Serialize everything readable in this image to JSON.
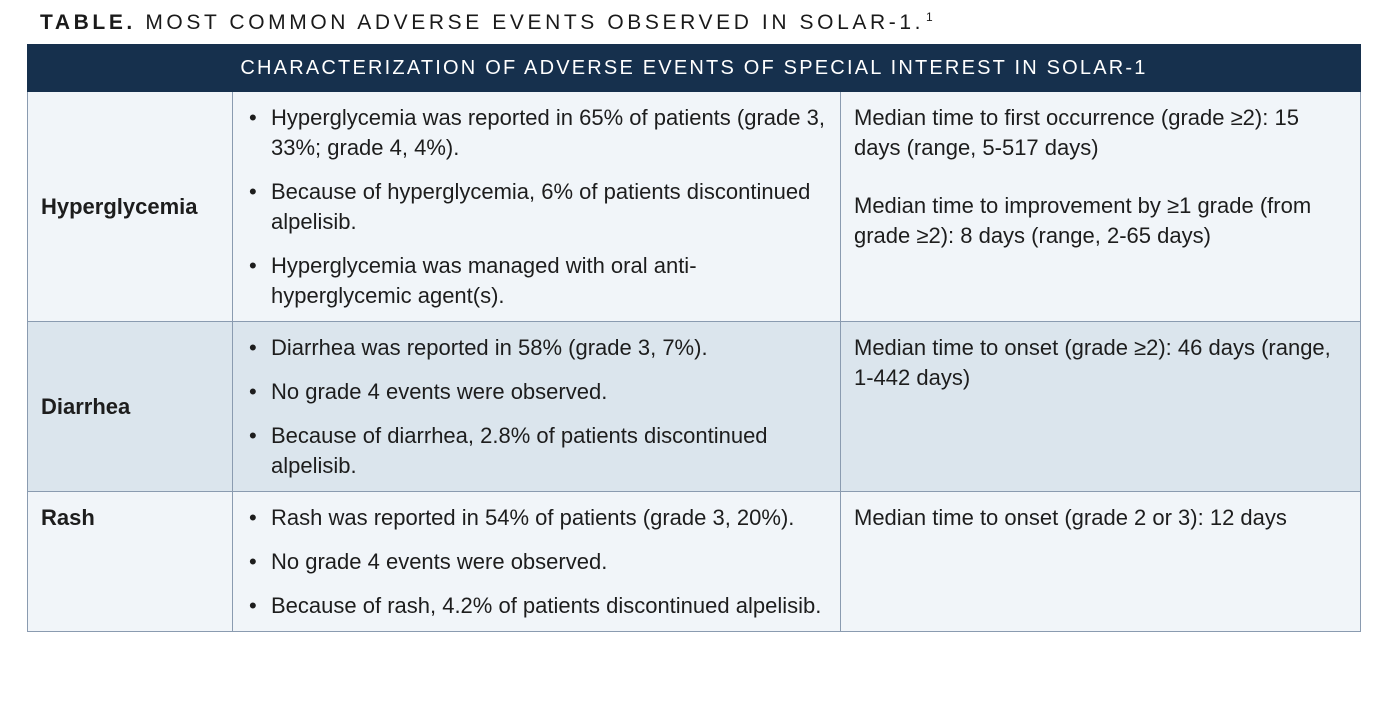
{
  "caption": {
    "label": "TABLE.",
    "title": "MOST COMMON ADVERSE EVENTS OBSERVED IN SOLAR-1.",
    "ref": "1"
  },
  "table": {
    "header": "CHARACTERIZATION OF ADVERSE EVENTS OF SPECIAL INTEREST IN SOLAR-1",
    "rows": [
      {
        "term": "Hyperglycemia",
        "bullets": [
          "Hyperglycemia was reported in 65% of patients (grade 3, 33%; grade 4, 4%).",
          "Because of hyperglycemia, 6% of patients discontinued alpelisib.",
          "Hyperglycemia was managed with oral anti-hyperglycemic agent(s)."
        ],
        "notes": [
          "Median time to first occurrence (grade ≥2): 15 days (range, 5-517 days)",
          "Median time to improvement by ≥1 grade (from grade ≥2): 8 days (range, 2-65 days)"
        ]
      },
      {
        "term": "Diarrhea",
        "bullets": [
          "Diarrhea was reported in 58% (grade 3, 7%).",
          "No grade 4 events were observed.",
          "Because of diarrhea, 2.8% of patients discontinued alpelisib."
        ],
        "notes": [
          "Median time to onset (grade ≥2): 46 days (range, 1-442 days)"
        ]
      },
      {
        "term": "Rash",
        "bullets": [
          "Rash was reported in 54% of patients (grade 3, 20%).",
          "No grade 4 events were observed.",
          "Because of rash, 4.2% of patients discontinued alpelisib."
        ],
        "notes": [
          "Median time to onset (grade 2 or 3): 12 days"
        ]
      }
    ]
  }
}
